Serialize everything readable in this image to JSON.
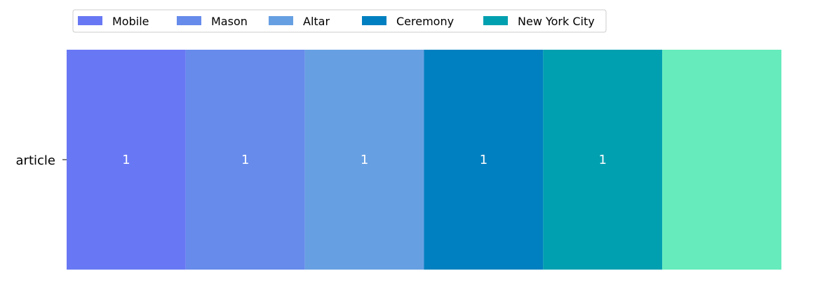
{
  "chart_data": {
    "type": "bar",
    "orientation": "horizontal",
    "stacked": true,
    "categories": [
      "article"
    ],
    "series": [
      {
        "name": "Mobile",
        "values": [
          1
        ],
        "color": "#6878f4"
      },
      {
        "name": "Mason",
        "values": [
          1
        ],
        "color": "#668beb"
      },
      {
        "name": "Altar",
        "values": [
          1
        ],
        "color": "#67a0e2"
      },
      {
        "name": "Ceremony",
        "values": [
          1
        ],
        "color": "#0080c0"
      },
      {
        "name": "New York City",
        "values": [
          1
        ],
        "color": "#01a0b0"
      },
      {
        "values": [
          1
        ],
        "color": "#66ecbc"
      }
    ],
    "data_labels": [
      "1",
      "1",
      "1",
      "1",
      "1",
      ""
    ],
    "xlim": [
      0,
      6
    ],
    "grid": false,
    "legend_position": "top-left"
  }
}
